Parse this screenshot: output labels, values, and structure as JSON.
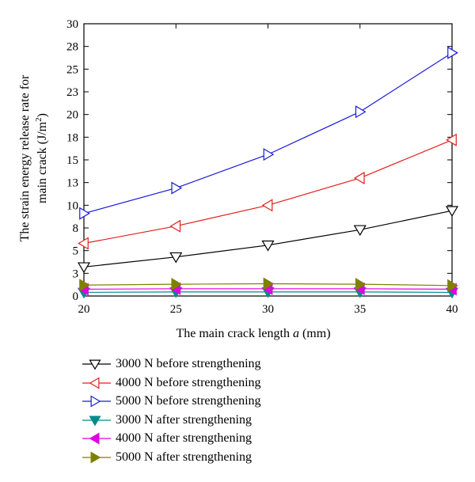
{
  "chart_data": {
    "type": "line",
    "xlabel_prefix": "The main crack length ",
    "xlabel_var": "a",
    "xlabel_suffix": " (mm)",
    "ylabel_line1": "The strain energy release rate for",
    "ylabel_line2_prefix": "main crack (J/m",
    "ylabel_line2_sup": "2",
    "ylabel_line2_suffix": ")",
    "xlim": [
      20,
      40
    ],
    "ylim": [
      0,
      30
    ],
    "x_ticks": [
      20,
      25,
      30,
      35,
      40
    ],
    "y_ticks": [
      0,
      3,
      5,
      8,
      10,
      13,
      15,
      18,
      20,
      23,
      25,
      28,
      30
    ],
    "y_tick_values": [
      0,
      2.5,
      5,
      7.5,
      10,
      12.5,
      15,
      17.5,
      20,
      22.5,
      25,
      27.5,
      30
    ],
    "x": [
      20,
      25,
      30,
      35,
      40
    ],
    "series": [
      {
        "name": "3000 N before strengthening",
        "values": [
          3.2,
          4.3,
          5.6,
          7.3,
          9.4
        ],
        "color": "#000000",
        "marker": "triangle-down",
        "filled": false
      },
      {
        "name": "4000 N before strengthening",
        "values": [
          5.8,
          7.7,
          10.0,
          13.0,
          17.2
        ],
        "color": "#e0201b",
        "marker": "triangle-left",
        "filled": false
      },
      {
        "name": "5000 N before strengthening",
        "values": [
          9.1,
          11.9,
          15.6,
          20.3,
          26.8
        ],
        "color": "#1a1adb",
        "marker": "triangle-right",
        "filled": false
      },
      {
        "name": "3000 N after strengthening",
        "values": [
          0.4,
          0.45,
          0.45,
          0.45,
          0.4
        ],
        "color": "#008b8b",
        "marker": "triangle-down",
        "filled": true
      },
      {
        "name": "4000 N after strengthening",
        "values": [
          0.75,
          0.8,
          0.8,
          0.8,
          0.75
        ],
        "color": "#e000e0",
        "marker": "triangle-left",
        "filled": true
      },
      {
        "name": "5000 N after strengthening",
        "values": [
          1.2,
          1.3,
          1.35,
          1.3,
          1.15
        ],
        "color": "#808000",
        "marker": "triangle-right",
        "filled": true
      }
    ],
    "grid": false,
    "legend_position": "bottom"
  }
}
